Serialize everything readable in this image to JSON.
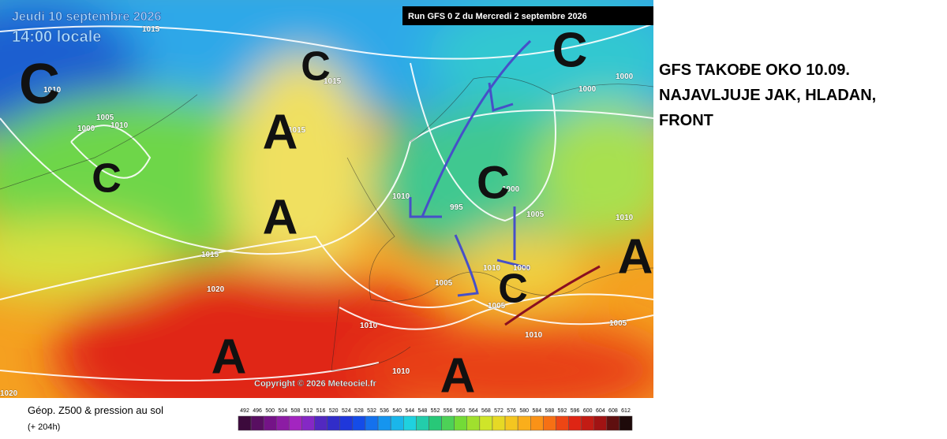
{
  "header": {
    "date": "Jeudi 10 septembre 2026",
    "time": "14:00 locale",
    "run": "Run GFS 0 Z du Mercredi 2 septembre 2026"
  },
  "copyright": "Copyright © 2026 Meteociel.fr",
  "legend": {
    "title": "Géop. Z500 & pression au sol",
    "lead": "(+ 204h)",
    "scale": [
      492,
      496,
      500,
      504,
      508,
      512,
      516,
      520,
      524,
      528,
      532,
      536,
      540,
      544,
      548,
      552,
      556,
      560,
      564,
      568,
      572,
      576,
      580,
      584,
      588,
      592,
      596,
      600,
      604,
      608,
      612
    ]
  },
  "pressure_labels": [
    "1015",
    "1010",
    "1015",
    "1005",
    "1010",
    "1000",
    "1015",
    "1010",
    "995",
    "1000",
    "1005",
    "1015",
    "1020",
    "1005",
    "1010",
    "1005",
    "1010",
    "1010",
    "1010",
    "1020",
    "1005",
    "1010",
    "1000",
    "1000",
    "1000"
  ],
  "systems": [
    "C",
    "C",
    "A",
    "C",
    "A",
    "C",
    "C",
    "A",
    "C",
    "A",
    "A"
  ],
  "annotation": [
    "GFS TAKOĐE OKO 10.09.",
    "NAJAVLJUJE JAK, HLADAN,",
    "FRONT"
  ]
}
